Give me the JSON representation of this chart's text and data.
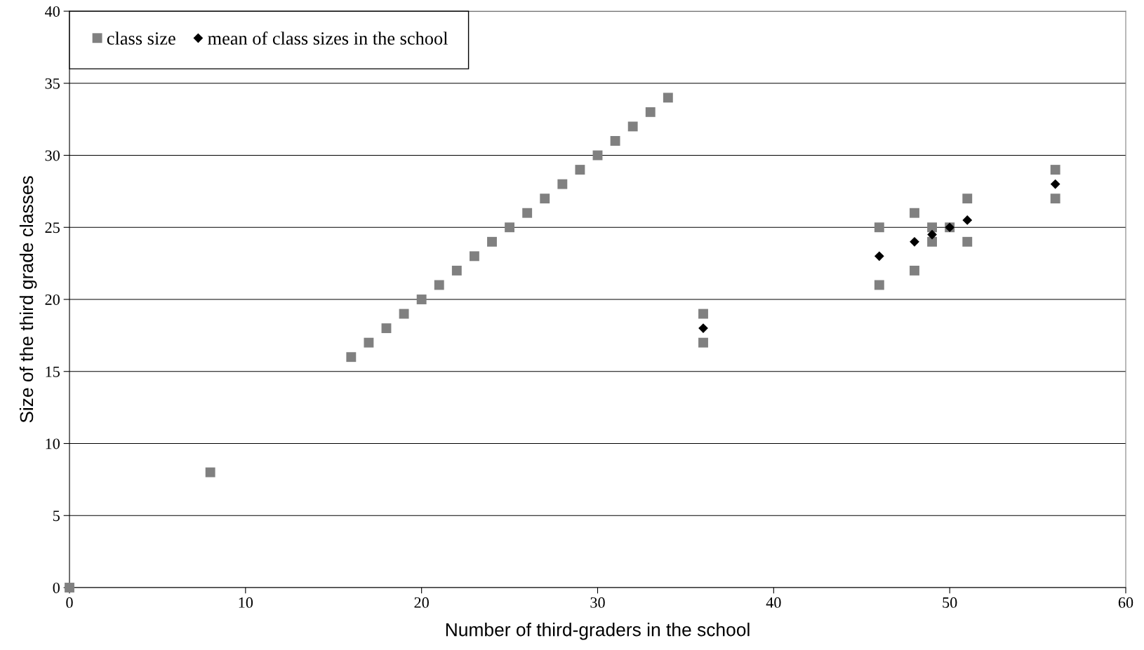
{
  "chart_data": {
    "type": "scatter",
    "xlabel": "Number of third-graders in the school",
    "ylabel": "Size of the third grade classes",
    "series": [
      {
        "name": "class size",
        "color": "#808080",
        "marker": "square",
        "x": [
          0,
          8,
          16,
          17,
          18,
          19,
          20,
          21,
          22,
          23,
          24,
          25,
          26,
          27,
          28,
          29,
          30,
          31,
          32,
          33,
          34,
          36,
          36,
          46,
          46,
          48,
          48,
          49,
          49,
          50,
          51,
          51,
          56,
          56
        ],
        "values": [
          0,
          8,
          16,
          17,
          18,
          19,
          20,
          21,
          22,
          23,
          24,
          25,
          26,
          27,
          28,
          29,
          30,
          31,
          32,
          33,
          34,
          19,
          17,
          25,
          21,
          26,
          22,
          25,
          24,
          25,
          27,
          24,
          29,
          27
        ]
      },
      {
        "name": "mean of class sizes in the school",
        "color": "#000000",
        "marker": "diamond",
        "x": [
          36,
          46,
          48,
          49,
          50,
          51,
          56
        ],
        "values": [
          18,
          23,
          24,
          24.5,
          25,
          25.5,
          28
        ]
      }
    ],
    "xlim": [
      0,
      60
    ],
    "xticks": [
      0,
      10,
      20,
      30,
      40,
      50,
      60
    ],
    "ylim": [
      0,
      40
    ],
    "yticks": [
      0,
      5,
      10,
      15,
      20,
      25,
      30,
      35,
      40
    ],
    "grid": "y",
    "legend": "top left"
  }
}
